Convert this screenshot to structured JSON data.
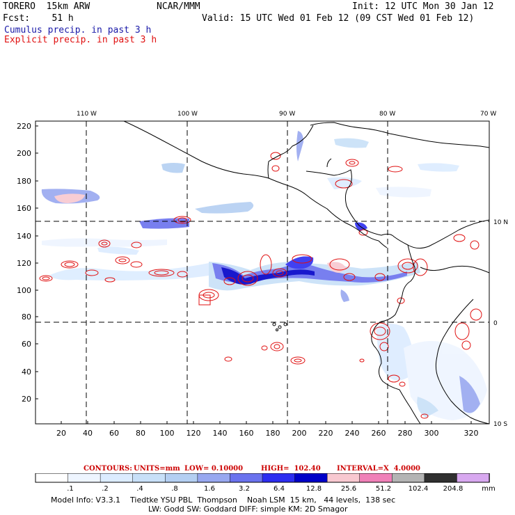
{
  "header": {
    "left1": "TORERO  15km ARW",
    "center1": "NCAR/MMM",
    "right1": "Init: 12 UTC Mon 30 Jan 12",
    "left2": "Fcst:    51 h",
    "right2": "Valid: 15 UTC Wed 01 Feb 12 (09 CST Wed 01 Feb 12)",
    "legend_cumulus": "Cumulus precip. in past 3 h",
    "legend_explicit": "Explicit precip. in past 3 h"
  },
  "map": {
    "top_lon_labels": [
      "110 W",
      "100 W",
      "90 W",
      "80 W",
      "70 W"
    ],
    "right_lat_labels": [
      "10 N",
      "0",
      "10 S"
    ],
    "y_ticks": [
      "220",
      "200",
      "180",
      "160",
      "140",
      "120",
      "100",
      "80",
      "60",
      "40",
      "20"
    ],
    "x_ticks": [
      "20",
      "40",
      "60",
      "80",
      "100",
      "120",
      "140",
      "160",
      "180",
      "200",
      "220",
      "240",
      "260",
      "280",
      "300",
      "320"
    ]
  },
  "contours": {
    "label": "CONTOURS:",
    "units": "UNITS=mm",
    "low": "LOW= 0.10000",
    "high": "HIGH=  102.40",
    "interval": "INTERVAL=X  4.0000"
  },
  "colorbar": {
    "labels": [
      ".1",
      ".2",
      ".4",
      ".8",
      "1.6",
      "3.2",
      "6.4",
      "12.8",
      "25.6",
      "51.2",
      "102.4",
      "204.8"
    ],
    "unit": "mm",
    "colors": [
      "#ffffff",
      "#eef5ff",
      "#dcecff",
      "#c8e0f8",
      "#b4cff2",
      "#98a8f0",
      "#6a72ee",
      "#2d2df0",
      "#0000c8",
      "#f8c8d0",
      "#f080b8",
      "#b4b4b4",
      "#303030",
      "#d8a8f0"
    ]
  },
  "footer": {
    "line1": "Model Info: V3.3.1    Tiedtke YSU PBL  Thompson    Noah LSM  15 km,   44 levels,  138 sec",
    "line2": "LW: Godd SW: Goddard DIFF: simple KM: 2D Smagor"
  }
}
